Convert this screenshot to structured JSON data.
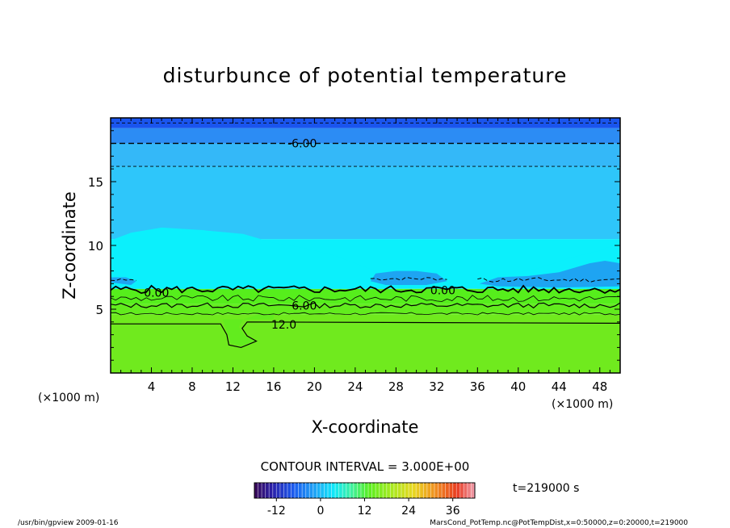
{
  "chart_data": {
    "type": "heatmap",
    "title": "disturbunce of potential temperature",
    "xlabel": "X-coordinate",
    "ylabel": "Z-coordinate",
    "x_unit": "(×1000 m)",
    "z_unit": "(×1000 m)",
    "x_range": [
      0,
      50
    ],
    "z_range": [
      0,
      20
    ],
    "x_ticks": [
      4,
      8,
      12,
      16,
      20,
      24,
      28,
      32,
      36,
      40,
      44,
      48
    ],
    "z_ticks": [
      5,
      10,
      15
    ],
    "contour_interval_label": "CONTOUR INTERVAL = 3.000E+00",
    "contour_labels": [
      {
        "text": "-6.00",
        "x": 18.8,
        "z": 18.0
      },
      {
        "text": "0.00",
        "x": 4.5,
        "z": 6.3
      },
      {
        "text": "0.00",
        "x": 32.6,
        "z": 6.5
      },
      {
        "text": "6.00",
        "x": 19.0,
        "z": 5.3
      },
      {
        "text": "12.0",
        "x": 17.0,
        "z": 3.8
      }
    ],
    "colorbar": {
      "min": -18,
      "max": 42,
      "ticks": [
        "-12",
        "0",
        "12",
        "24",
        "36"
      ],
      "tick_values": [
        -12,
        0,
        12,
        24,
        36
      ]
    },
    "time_label": "t=219000 s",
    "field_bands": [
      {
        "z_from": 0,
        "z_to": 3.8,
        "value": 11
      },
      {
        "z_from": 3.8,
        "z_to": 4.6,
        "value": 10
      },
      {
        "z_from": 4.6,
        "z_to": 5.4,
        "value": 8
      },
      {
        "z_from": 5.4,
        "z_to": 6.6,
        "value": 5
      },
      {
        "z_from": 6.6,
        "z_to": 10.5,
        "value": -2
      },
      {
        "z_from": 10.5,
        "z_to": 16.2,
        "value": -4
      },
      {
        "z_from": 16.2,
        "z_to": 18.0,
        "value": -7
      },
      {
        "z_from": 18.0,
        "z_to": 19.2,
        "value": -9
      },
      {
        "z_from": 19.2,
        "z_to": 20,
        "value": -11
      }
    ]
  },
  "footer": {
    "left": "/usr/bin/gpview   2009-01-16",
    "right": "MarsCond_PotTemp.nc@PotTempDist,x=0:50000,z=0:20000,t=219000"
  },
  "colors": {
    "deep_blue": "#1a55ee",
    "blue": "#2c8cf4",
    "light_blue": "#34b8f8",
    "sky": "#2ec6fa",
    "cyan": "#0bf0fc",
    "green": "#56ee1c",
    "lime": "#70ea1e"
  }
}
